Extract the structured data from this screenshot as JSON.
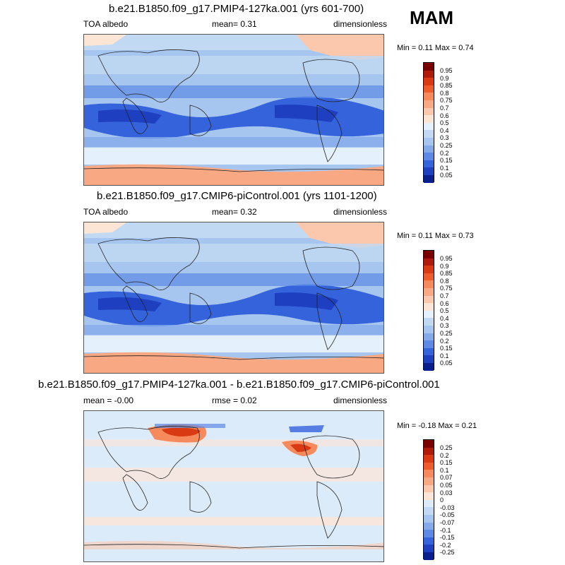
{
  "season": "MAM",
  "panels": [
    {
      "title": "b.e21.B1850.f09_g17.PMIP4-127ka.001 (yrs 601-700)",
      "left_label": "TOA albedo",
      "mean_text": "mean=   0.31",
      "units": "dimensionless",
      "minmax": "Min =   0.11 Max =   0.74",
      "levels": [
        "0.95",
        "0.9",
        "0.85",
        "0.8",
        "0.75",
        "0.7",
        "0.6",
        "0.5",
        "0.4",
        "0.3",
        "0.25",
        "0.2",
        "0.15",
        "0.1",
        "0.05"
      ]
    },
    {
      "title": "b.e21.B1850.f09_g17.CMIP6-piControl.001 (yrs 1101-1200)",
      "left_label": "TOA albedo",
      "mean_text": "mean=   0.32",
      "units": "dimensionless",
      "minmax": "Min =   0.11 Max =   0.73",
      "levels": [
        "0.95",
        "0.9",
        "0.85",
        "0.8",
        "0.75",
        "0.7",
        "0.6",
        "0.5",
        "0.4",
        "0.3",
        "0.25",
        "0.2",
        "0.15",
        "0.1",
        "0.05"
      ]
    },
    {
      "title": "b.e21.B1850.f09_g17.PMIP4-127ka.001 - b.e21.B1850.f09_g17.CMIP6-piControl.001",
      "left_label": "mean =   -0.00",
      "mean_text": "rmse =   0.02",
      "units": "dimensionless",
      "minmax": "Min =   -0.18 Max =   0.21",
      "levels": [
        "0.25",
        "0.2",
        "0.15",
        "0.1",
        "0.07",
        "0.05",
        "0.03",
        "0",
        "-0.03",
        "-0.05",
        "-0.07",
        "-0.1",
        "-0.15",
        "-0.2",
        "-0.25"
      ]
    }
  ],
  "colors": {
    "abs_scale": [
      "#7a0000",
      "#b01a0a",
      "#d93a14",
      "#ee5c2c",
      "#f78a5c",
      "#f9a884",
      "#fcc8ad",
      "#fde5d6",
      "#e4f0fb",
      "#c2d9f3",
      "#a6c6ef",
      "#84aaea",
      "#5e8ae6",
      "#3563dc",
      "#1d3fc0",
      "#0a1f8e"
    ],
    "diff_scale": [
      "#7a0000",
      "#b01a0a",
      "#d93a14",
      "#ee5c2c",
      "#f78a5c",
      "#f9a884",
      "#fcc8ad",
      "#fde5d6",
      "#dcebfa",
      "#c2d9f3",
      "#a6c6ef",
      "#84aaea",
      "#5e8ae6",
      "#3563dc",
      "#1d3fc0",
      "#0a1f8e"
    ]
  }
}
